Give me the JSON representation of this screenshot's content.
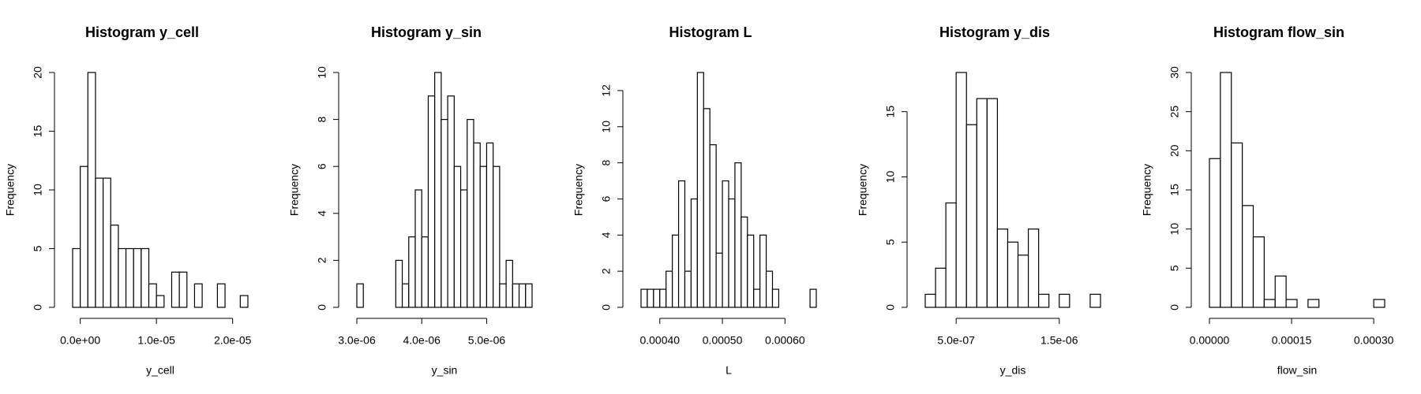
{
  "chart_data": [
    {
      "type": "histogram",
      "title": "Histogram y_cell",
      "x_label": "y_cell",
      "y_label": "Frequency",
      "bins": [
        -1e-06,
        0,
        1e-06,
        2e-06,
        3e-06,
        4e-06,
        5e-06,
        6e-06,
        7e-06,
        8e-06,
        9e-06,
        1e-05,
        1.1e-05,
        1.2e-05,
        1.3e-05,
        1.4e-05,
        1.5e-05,
        1.6e-05,
        1.7e-05,
        1.8e-05,
        1.9e-05,
        2e-05,
        2.1e-05,
        2.2e-05
      ],
      "values": [
        5,
        12,
        20,
        11,
        11,
        7,
        5,
        5,
        5,
        5,
        2,
        1,
        0,
        3,
        3,
        0,
        2,
        0,
        0,
        2,
        0,
        0,
        1
      ],
      "color": "#ffffff",
      "xlim": [
        -1e-06,
        2.2e-05
      ],
      "ylim": [
        0,
        20
      ],
      "xticks": [
        {
          "value": 0,
          "label": "0.0e+00"
        },
        {
          "value": 1e-05,
          "label": "1.0e-05"
        },
        {
          "value": 2e-05,
          "label": "2.0e-05"
        }
      ],
      "yticks": [
        0,
        5,
        10,
        15,
        20
      ]
    },
    {
      "type": "histogram",
      "title": "Histogram y_sin",
      "x_label": "y_sin",
      "y_label": "Frequency",
      "bins": [
        3e-06,
        3.1e-06,
        3.2e-06,
        3.3e-06,
        3.4e-06,
        3.5e-06,
        3.6e-06,
        3.7e-06,
        3.8e-06,
        3.9e-06,
        4e-06,
        4.1e-06,
        4.2e-06,
        4.3e-06,
        4.4e-06,
        4.5e-06,
        4.6e-06,
        4.7e-06,
        4.8e-06,
        4.9e-06,
        5e-06,
        5.1e-06,
        5.2e-06,
        5.3e-06,
        5.4e-06,
        5.5e-06,
        5.6e-06,
        5.7e-06
      ],
      "values": [
        1,
        0,
        0,
        0,
        0,
        0,
        2,
        1,
        3,
        5,
        3,
        9,
        10,
        8,
        9,
        6,
        5,
        8,
        7,
        6,
        7,
        6,
        1,
        2,
        1,
        1,
        1
      ],
      "color": "#ffffff",
      "xlim": [
        3e-06,
        5.7e-06
      ],
      "ylim": [
        0,
        10
      ],
      "xticks": [
        {
          "value": 3e-06,
          "label": "3.0e-06"
        },
        {
          "value": 4e-06,
          "label": "4.0e-06"
        },
        {
          "value": 5e-06,
          "label": "5.0e-06"
        }
      ],
      "yticks": [
        0,
        2,
        4,
        6,
        8,
        10
      ]
    },
    {
      "type": "histogram",
      "title": "Histogram L",
      "x_label": "L",
      "y_label": "Frequency",
      "bins": [
        0.00037,
        0.00038,
        0.00039,
        0.0004,
        0.00041,
        0.00042,
        0.00043,
        0.00044,
        0.00045,
        0.00046,
        0.00047,
        0.00048,
        0.00049,
        0.0005,
        0.00051,
        0.00052,
        0.00053,
        0.00054,
        0.00055,
        0.00056,
        0.00057,
        0.00058,
        0.00059,
        0.0006,
        0.00061,
        0.00062,
        0.00063,
        0.00064,
        0.00065
      ],
      "values": [
        1,
        1,
        1,
        1,
        2,
        4,
        7,
        2,
        6,
        13,
        11,
        9,
        3,
        7,
        6,
        8,
        5,
        4,
        1,
        4,
        2,
        1,
        0,
        0,
        0,
        0,
        0,
        1
      ],
      "color": "#ffffff",
      "xlim": [
        0.00037,
        0.00065
      ],
      "ylim": [
        0,
        13
      ],
      "xticks": [
        {
          "value": 0.0004,
          "label": "0.00040"
        },
        {
          "value": 0.0005,
          "label": "0.00050"
        },
        {
          "value": 0.0006,
          "label": "0.00060"
        }
      ],
      "yticks": [
        0,
        2,
        4,
        6,
        8,
        10,
        12
      ]
    },
    {
      "type": "histogram",
      "title": "Histogram y_dis",
      "x_label": "y_dis",
      "y_label": "Frequency",
      "bins": [
        2e-07,
        3e-07,
        4e-07,
        5e-07,
        6e-07,
        7e-07,
        8e-07,
        9e-07,
        1e-06,
        1.1e-06,
        1.2e-06,
        1.3e-06,
        1.4e-06,
        1.5e-06,
        1.6e-06,
        1.7e-06,
        1.8e-06,
        1.9e-06
      ],
      "values": [
        1,
        3,
        8,
        18,
        14,
        16,
        16,
        6,
        5,
        4,
        6,
        1,
        0,
        1,
        0,
        0,
        1
      ],
      "color": "#ffffff",
      "xlim": [
        2e-07,
        1.9e-06
      ],
      "ylim": [
        0,
        18
      ],
      "xticks": [
        {
          "value": 5e-07,
          "label": "5.0e-07"
        },
        {
          "value": 1.5e-06,
          "label": "1.5e-06"
        }
      ],
      "yticks": [
        0,
        5,
        10,
        15
      ]
    },
    {
      "type": "histogram",
      "title": "Histogram flow_sin",
      "x_label": "flow_sin",
      "y_label": "Frequency",
      "bins": [
        0,
        2e-05,
        4e-05,
        6e-05,
        8e-05,
        0.0001,
        0.00012,
        0.00014,
        0.00016,
        0.00018,
        0.0002,
        0.00022,
        0.00024,
        0.00026,
        0.00028,
        0.0003,
        0.00032
      ],
      "values": [
        19,
        30,
        21,
        13,
        9,
        1,
        4,
        1,
        0,
        1,
        0,
        0,
        0,
        0,
        0,
        1
      ],
      "color": "#ffffff",
      "xlim": [
        0,
        0.00032
      ],
      "ylim": [
        0,
        30
      ],
      "xticks": [
        {
          "value": 0,
          "label": "0.00000"
        },
        {
          "value": 0.00015,
          "label": "0.00015"
        },
        {
          "value": 0.0003,
          "label": "0.00030"
        }
      ],
      "yticks": [
        0,
        5,
        10,
        15,
        20,
        25,
        30
      ]
    }
  ]
}
